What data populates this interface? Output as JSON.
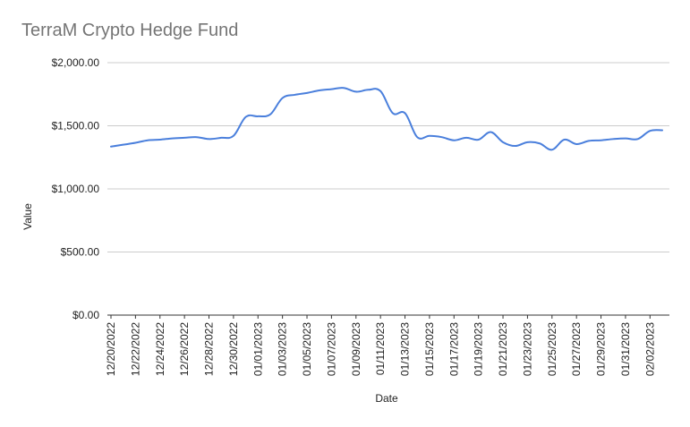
{
  "chart_data": {
    "type": "line",
    "title": "TerraM Crypto Hedge Fund",
    "xlabel": "Date",
    "ylabel": "Value",
    "ylim": [
      0,
      2000
    ],
    "y_ticks": [
      "$0.00",
      "$500.00",
      "$1,000.00",
      "$1,500.00",
      "$2,000.00"
    ],
    "y_tick_values": [
      0,
      500,
      1000,
      1500,
      2000
    ],
    "x_tick_labels": [
      "12/20/2022",
      "12/22/2022",
      "12/24/2022",
      "12/26/2022",
      "12/28/2022",
      "12/30/2022",
      "01/01/2023",
      "01/03/2023",
      "01/05/2023",
      "01/07/2023",
      "01/09/2023",
      "01/11/2023",
      "01/13/2023",
      "01/15/2023",
      "01/17/2023",
      "01/19/2023",
      "01/21/2023",
      "01/23/2023",
      "01/25/2023",
      "01/27/2023",
      "01/29/2023",
      "01/31/2023",
      "02/02/2023"
    ],
    "grid": true,
    "line_color": "#4a7fdc",
    "series": [
      {
        "x": [
          "12/20/2022",
          "12/21/2022",
          "12/22/2022",
          "12/23/2022",
          "12/24/2022",
          "12/25/2022",
          "12/26/2022",
          "12/27/2022",
          "12/28/2022",
          "12/29/2022",
          "12/30/2022",
          "12/31/2022",
          "01/01/2023",
          "01/02/2023",
          "01/03/2023",
          "01/04/2023",
          "01/05/2023",
          "01/06/2023",
          "01/07/2023",
          "01/08/2023",
          "01/09/2023",
          "01/10/2023",
          "01/11/2023",
          "01/12/2023",
          "01/13/2023",
          "01/14/2023",
          "01/15/2023",
          "01/16/2023",
          "01/17/2023",
          "01/18/2023",
          "01/19/2023",
          "01/20/2023",
          "01/21/2023",
          "01/22/2023",
          "01/23/2023",
          "01/24/2023",
          "01/25/2023",
          "01/26/2023",
          "01/27/2023",
          "01/28/2023",
          "01/29/2023",
          "01/30/2023",
          "01/31/2023",
          "02/01/2023",
          "02/02/2023",
          "02/03/2023"
        ],
        "values": [
          1335,
          1350,
          1365,
          1385,
          1390,
          1400,
          1405,
          1410,
          1395,
          1405,
          1420,
          1570,
          1575,
          1590,
          1720,
          1745,
          1760,
          1780,
          1790,
          1800,
          1770,
          1785,
          1775,
          1600,
          1600,
          1410,
          1420,
          1410,
          1385,
          1405,
          1390,
          1450,
          1370,
          1340,
          1370,
          1360,
          1310,
          1390,
          1355,
          1380,
          1385,
          1395,
          1400,
          1395,
          1460,
          1465
        ]
      }
    ]
  }
}
